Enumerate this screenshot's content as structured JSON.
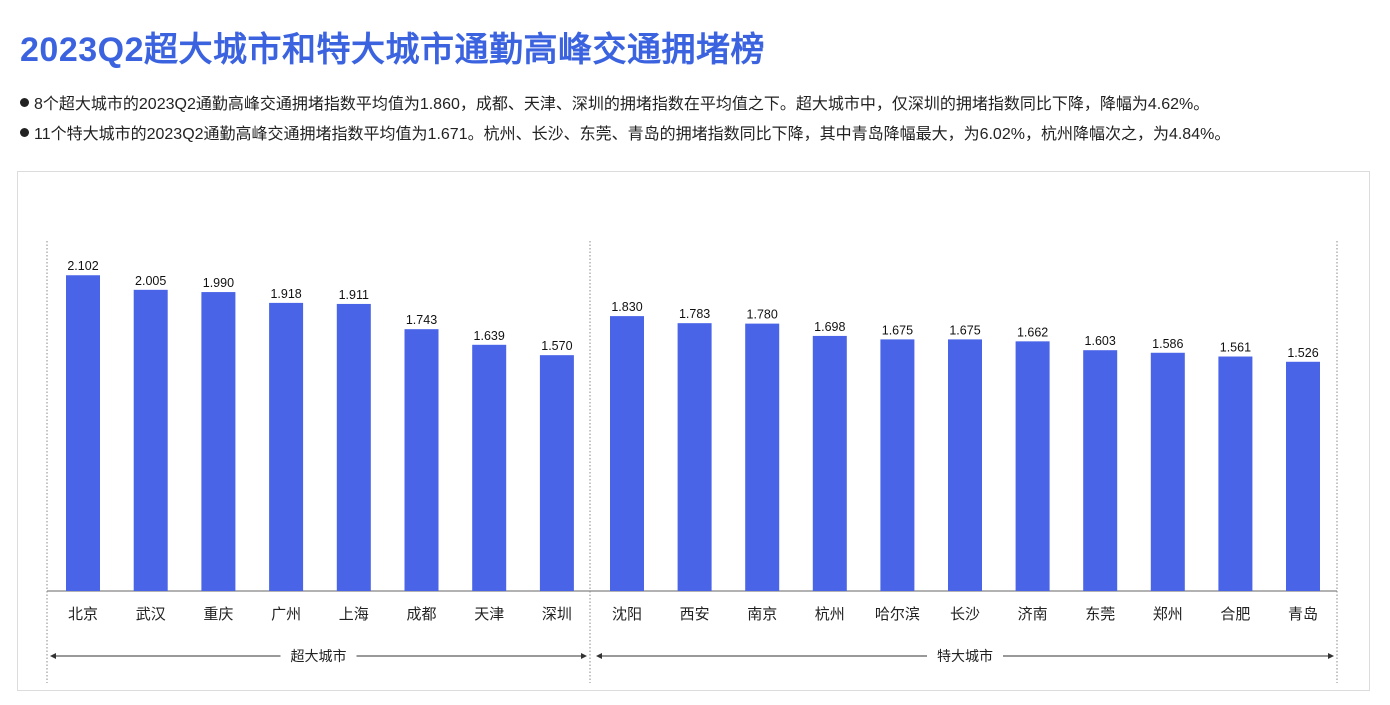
{
  "title": "2023Q2超大城市和特大城市通勤高峰交通拥堵榜",
  "bullets": [
    "8个超大城市的2023Q2通勤高峰交通拥堵指数平均值为1.860，成都、天津、深圳的拥堵指数在平均值之下。超大城市中，仅深圳的拥堵指数同比下降，降幅为4.62%。",
    "11个特大城市的2023Q2通勤高峰交通拥堵指数平均值为1.671。杭州、长沙、东莞、青岛的拥堵指数同比下降，其中青岛降幅最大，为6.02%，杭州降幅次之，为4.84%。"
  ],
  "chart_data": {
    "type": "bar",
    "title": "",
    "xlabel": "",
    "ylabel": "",
    "ylim": [
      0,
      2.33
    ],
    "grid": false,
    "bar_color": "#4a64e8",
    "categories": [
      "北京",
      "武汉",
      "重庆",
      "广州",
      "上海",
      "成都",
      "天津",
      "深圳",
      "沈阳",
      "西安",
      "南京",
      "杭州",
      "哈尔滨",
      "长沙",
      "济南",
      "东莞",
      "郑州",
      "合肥",
      "青岛"
    ],
    "values": [
      2.102,
      2.005,
      1.99,
      1.918,
      1.911,
      1.743,
      1.639,
      1.57,
      1.83,
      1.783,
      1.78,
      1.698,
      1.675,
      1.675,
      1.662,
      1.603,
      1.586,
      1.561,
      1.526
    ],
    "value_labels": [
      "2.102",
      "2.005",
      "1.990",
      "1.918",
      "1.911",
      "1.743",
      "1.639",
      "1.570",
      "1.830",
      "1.783",
      "1.780",
      "1.698",
      "1.675",
      "1.675",
      "1.662",
      "1.603",
      "1.586",
      "1.561",
      "1.526"
    ],
    "groups": [
      {
        "name": "超大城市",
        "count": 8
      },
      {
        "name": "特大城市",
        "count": 11
      }
    ]
  }
}
